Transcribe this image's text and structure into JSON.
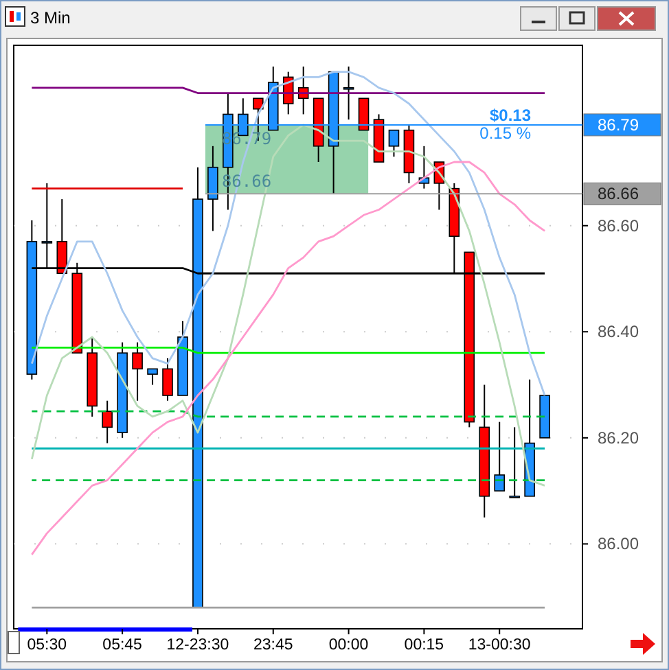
{
  "chart_data": {
    "type": "candlestick",
    "title": "3 Min",
    "categories": [
      null,
      "05:30",
      null,
      null,
      null,
      null,
      "05:45",
      null,
      null,
      null,
      null,
      "12-23:30",
      null,
      null,
      null,
      null,
      "23:45",
      null,
      null,
      null,
      null,
      "00:00",
      null,
      null,
      null,
      null,
      "00:15",
      null,
      null,
      null,
      null,
      "13-00:30",
      null,
      null,
      null
    ],
    "ohlc": [
      [
        86.32,
        86.61,
        86.31,
        86.57
      ],
      [
        86.57,
        86.68,
        86.52,
        86.57
      ],
      [
        86.57,
        86.65,
        86.51,
        86.51
      ],
      [
        86.51,
        86.53,
        86.36,
        86.36
      ],
      [
        86.36,
        86.39,
        86.24,
        86.26
      ],
      [
        86.25,
        86.27,
        86.19,
        86.22
      ],
      [
        86.21,
        86.38,
        86.2,
        86.36
      ],
      [
        86.36,
        86.38,
        86.27,
        86.33
      ],
      [
        86.32,
        86.33,
        86.3,
        86.33
      ],
      [
        86.33,
        86.35,
        86.27,
        86.28
      ],
      [
        86.28,
        86.42,
        86.28,
        86.39
      ],
      [
        85.88,
        86.71,
        85.88,
        86.65
      ],
      [
        86.65,
        86.75,
        86.59,
        86.71
      ],
      [
        86.71,
        86.85,
        86.63,
        86.81
      ],
      [
        86.77,
        86.84,
        86.77,
        86.81
      ],
      [
        86.84,
        86.84,
        86.76,
        86.82
      ],
      [
        86.78,
        86.9,
        86.78,
        86.87
      ],
      [
        86.88,
        86.89,
        86.81,
        86.83
      ],
      [
        86.86,
        86.9,
        86.81,
        86.84
      ],
      [
        86.84,
        86.84,
        86.72,
        86.75
      ],
      [
        86.75,
        86.89,
        86.66,
        86.89
      ],
      [
        86.86,
        86.9,
        86.8,
        86.86
      ],
      [
        86.84,
        86.84,
        86.78,
        86.78
      ],
      [
        86.8,
        86.81,
        86.72,
        86.72
      ],
      [
        86.75,
        86.78,
        86.73,
        86.78
      ],
      [
        86.78,
        86.79,
        86.68,
        86.7
      ],
      [
        86.68,
        86.75,
        86.67,
        86.69
      ],
      [
        86.72,
        86.72,
        86.63,
        86.68
      ],
      [
        86.67,
        86.68,
        86.51,
        86.58
      ],
      [
        86.55,
        86.55,
        86.22,
        86.23
      ],
      [
        86.22,
        86.3,
        86.05,
        86.09
      ],
      [
        86.1,
        86.23,
        86.1,
        86.13
      ],
      [
        86.09,
        86.22,
        86.09,
        86.09
      ],
      [
        86.09,
        86.31,
        86.09,
        86.19
      ],
      [
        86.2,
        86.28,
        86.2,
        86.28
      ]
    ],
    "colors": [
      "#1e90ff",
      "#1e90ff",
      "#ff0000",
      "#ff0000",
      "#ff0000",
      "#ff0000",
      "#1e90ff",
      "#ff0000",
      "#1e90ff",
      "#ff0000",
      "#1e90ff",
      "#1e90ff",
      "#1e90ff",
      "#1e90ff",
      "#1e90ff",
      "#ff0000",
      "#1e90ff",
      "#ff0000",
      "#ff0000",
      "#ff0000",
      "#1e90ff",
      "#1e90ff",
      "#ff0000",
      "#ff0000",
      "#1e90ff",
      "#ff0000",
      "#1e90ff",
      "#ff0000",
      "#ff0000",
      "#ff0000",
      "#ff0000",
      "#1e90ff",
      "#1e90ff",
      "#1e90ff",
      "#1e90ff"
    ],
    "series": [
      {
        "type": "line",
        "color": "#800080",
        "values": [
          86.86,
          86.86,
          86.86,
          86.86,
          86.86,
          86.86,
          86.86,
          86.86,
          86.86,
          86.86,
          86.86,
          86.85,
          86.85,
          86.85,
          86.85,
          86.85,
          86.85,
          86.85,
          86.85,
          86.85,
          86.85,
          86.85,
          86.85,
          86.85,
          86.85,
          86.85,
          86.85,
          86.85,
          86.85,
          86.85,
          86.85,
          86.85,
          86.85,
          86.85,
          86.85
        ]
      },
      {
        "type": "line",
        "color": "#e00000",
        "values": [
          86.67,
          86.67,
          86.67,
          86.67,
          86.67,
          86.67,
          86.67,
          86.67,
          86.67,
          86.67,
          86.67,
          null,
          null,
          null,
          null,
          null,
          null,
          null,
          null,
          null,
          null,
          null,
          null,
          null,
          null,
          null,
          null,
          null,
          null,
          null,
          null,
          null,
          null,
          null,
          null
        ]
      },
      {
        "type": "line",
        "color": "#000000",
        "values": [
          86.52,
          86.52,
          86.52,
          86.52,
          86.52,
          86.52,
          86.52,
          86.52,
          86.52,
          86.52,
          86.52,
          86.51,
          86.51,
          86.51,
          86.51,
          86.51,
          86.51,
          86.51,
          86.51,
          86.51,
          86.51,
          86.51,
          86.51,
          86.51,
          86.51,
          86.51,
          86.51,
          86.51,
          86.51,
          86.51,
          86.51,
          86.51,
          86.51,
          86.51,
          86.51
        ]
      },
      {
        "type": "line",
        "color": "#00ee00",
        "values": [
          86.37,
          86.37,
          86.37,
          86.37,
          86.37,
          86.37,
          86.37,
          86.37,
          86.37,
          86.37,
          86.37,
          86.36,
          86.36,
          86.36,
          86.36,
          86.36,
          86.36,
          86.36,
          86.36,
          86.36,
          86.36,
          86.36,
          86.36,
          86.36,
          86.36,
          86.36,
          86.36,
          86.36,
          86.36,
          86.36,
          86.36,
          86.36,
          86.36,
          86.36,
          86.36
        ]
      },
      {
        "type": "line",
        "color": "#00c040",
        "line_style": "dashed",
        "values": [
          86.25,
          86.25,
          86.25,
          86.25,
          86.25,
          86.25,
          86.25,
          86.25,
          86.25,
          86.25,
          86.25,
          86.24,
          86.24,
          86.24,
          86.24,
          86.24,
          86.24,
          86.24,
          86.24,
          86.24,
          86.24,
          86.24,
          86.24,
          86.24,
          86.24,
          86.24,
          86.24,
          86.24,
          86.24,
          86.24,
          86.24,
          86.24,
          86.24,
          86.24,
          86.24
        ]
      },
      {
        "type": "line",
        "color": "#00b4b4",
        "values": [
          86.18,
          86.18,
          86.18,
          86.18,
          86.18,
          86.18,
          86.18,
          86.18,
          86.18,
          86.18,
          86.18,
          86.18,
          86.18,
          86.18,
          86.18,
          86.18,
          86.18,
          86.18,
          86.18,
          86.18,
          86.18,
          86.18,
          86.18,
          86.18,
          86.18,
          86.18,
          86.18,
          86.18,
          86.18,
          86.18,
          86.18,
          86.18,
          86.18,
          86.18,
          86.18
        ]
      },
      {
        "type": "line",
        "color": "#00c040",
        "line_style": "dashed",
        "values": [
          86.12,
          86.12,
          86.12,
          86.12,
          86.12,
          86.12,
          86.12,
          86.12,
          86.12,
          86.12,
          86.12,
          86.12,
          86.12,
          86.12,
          86.12,
          86.12,
          86.12,
          86.12,
          86.12,
          86.12,
          86.12,
          86.12,
          86.12,
          86.12,
          86.12,
          86.12,
          86.12,
          86.12,
          86.12,
          86.12,
          86.12,
          86.12,
          86.12,
          86.12,
          86.12
        ]
      },
      {
        "type": "line",
        "color": "#a0a0a0",
        "values": [
          85.88,
          85.88,
          85.88,
          85.88,
          85.88,
          85.88,
          85.88,
          85.88,
          85.88,
          85.88,
          85.88,
          85.88,
          85.88,
          85.88,
          85.88,
          85.88,
          85.88,
          85.88,
          85.88,
          85.88,
          85.88,
          85.88,
          85.88,
          85.88,
          85.88,
          85.88,
          85.88,
          85.88,
          85.88,
          85.88,
          85.88,
          85.88,
          85.88,
          85.88,
          85.88
        ]
      },
      {
        "type": "line",
        "color": "#a8c8ee",
        "values": [
          86.34,
          86.43,
          86.5,
          86.57,
          86.57,
          86.51,
          86.44,
          86.39,
          86.35,
          86.34,
          86.39,
          86.47,
          86.51,
          86.6,
          86.72,
          86.81,
          86.86,
          86.87,
          86.88,
          86.88,
          86.89,
          86.89,
          86.88,
          86.86,
          86.85,
          86.83,
          86.8,
          86.77,
          86.74,
          86.7,
          86.63,
          86.54,
          86.47,
          86.36,
          86.28
        ]
      },
      {
        "type": "line",
        "color": "#b8dcb8",
        "values": [
          86.16,
          86.28,
          86.35,
          86.37,
          86.39,
          86.36,
          86.31,
          86.26,
          86.24,
          86.25,
          86.27,
          86.21,
          86.28,
          86.35,
          86.47,
          86.6,
          86.73,
          86.77,
          86.79,
          86.78,
          86.76,
          86.76,
          86.76,
          86.74,
          86.74,
          86.74,
          86.73,
          86.7,
          86.66,
          86.59,
          86.49,
          86.38,
          86.26,
          86.12,
          86.11
        ]
      },
      {
        "type": "line",
        "color": "#ff99cc",
        "values": [
          85.98,
          86.02,
          86.05,
          86.08,
          86.11,
          86.12,
          86.15,
          86.18,
          86.21,
          86.23,
          86.24,
          86.28,
          86.31,
          86.35,
          86.39,
          86.43,
          86.47,
          86.52,
          86.54,
          86.57,
          86.58,
          86.6,
          86.62,
          86.63,
          86.65,
          86.67,
          86.69,
          86.71,
          86.72,
          86.72,
          86.7,
          86.66,
          86.64,
          86.61,
          86.59
        ]
      }
    ],
    "ylim": [
      85.84,
      86.94
    ],
    "yticks": [
      {
        "value": 86,
        "label": "86.00"
      },
      {
        "value": 86.2,
        "label": "86.20"
      },
      {
        "value": 86.4,
        "label": "86.40"
      },
      {
        "value": 86.6,
        "label": "86.60"
      }
    ],
    "grid": "y",
    "ref_lines": [
      {
        "axis": "y",
        "value": 86.79,
        "label": "86.79",
        "color": "#1e90ff"
      },
      {
        "axis": "y",
        "value": 86.66,
        "label": "86.66",
        "color": "#a0a0a0"
      }
    ],
    "bands": [
      {
        "axis": "y",
        "from": 86.66,
        "to": 86.79,
        "color": "#5dbb7f"
      }
    ],
    "annotations": [
      {
        "text": "86.79",
        "y": 86.79
      },
      {
        "text": "86.66",
        "y": 86.66
      },
      "$0.13",
      "0.15 %"
    ]
  }
}
